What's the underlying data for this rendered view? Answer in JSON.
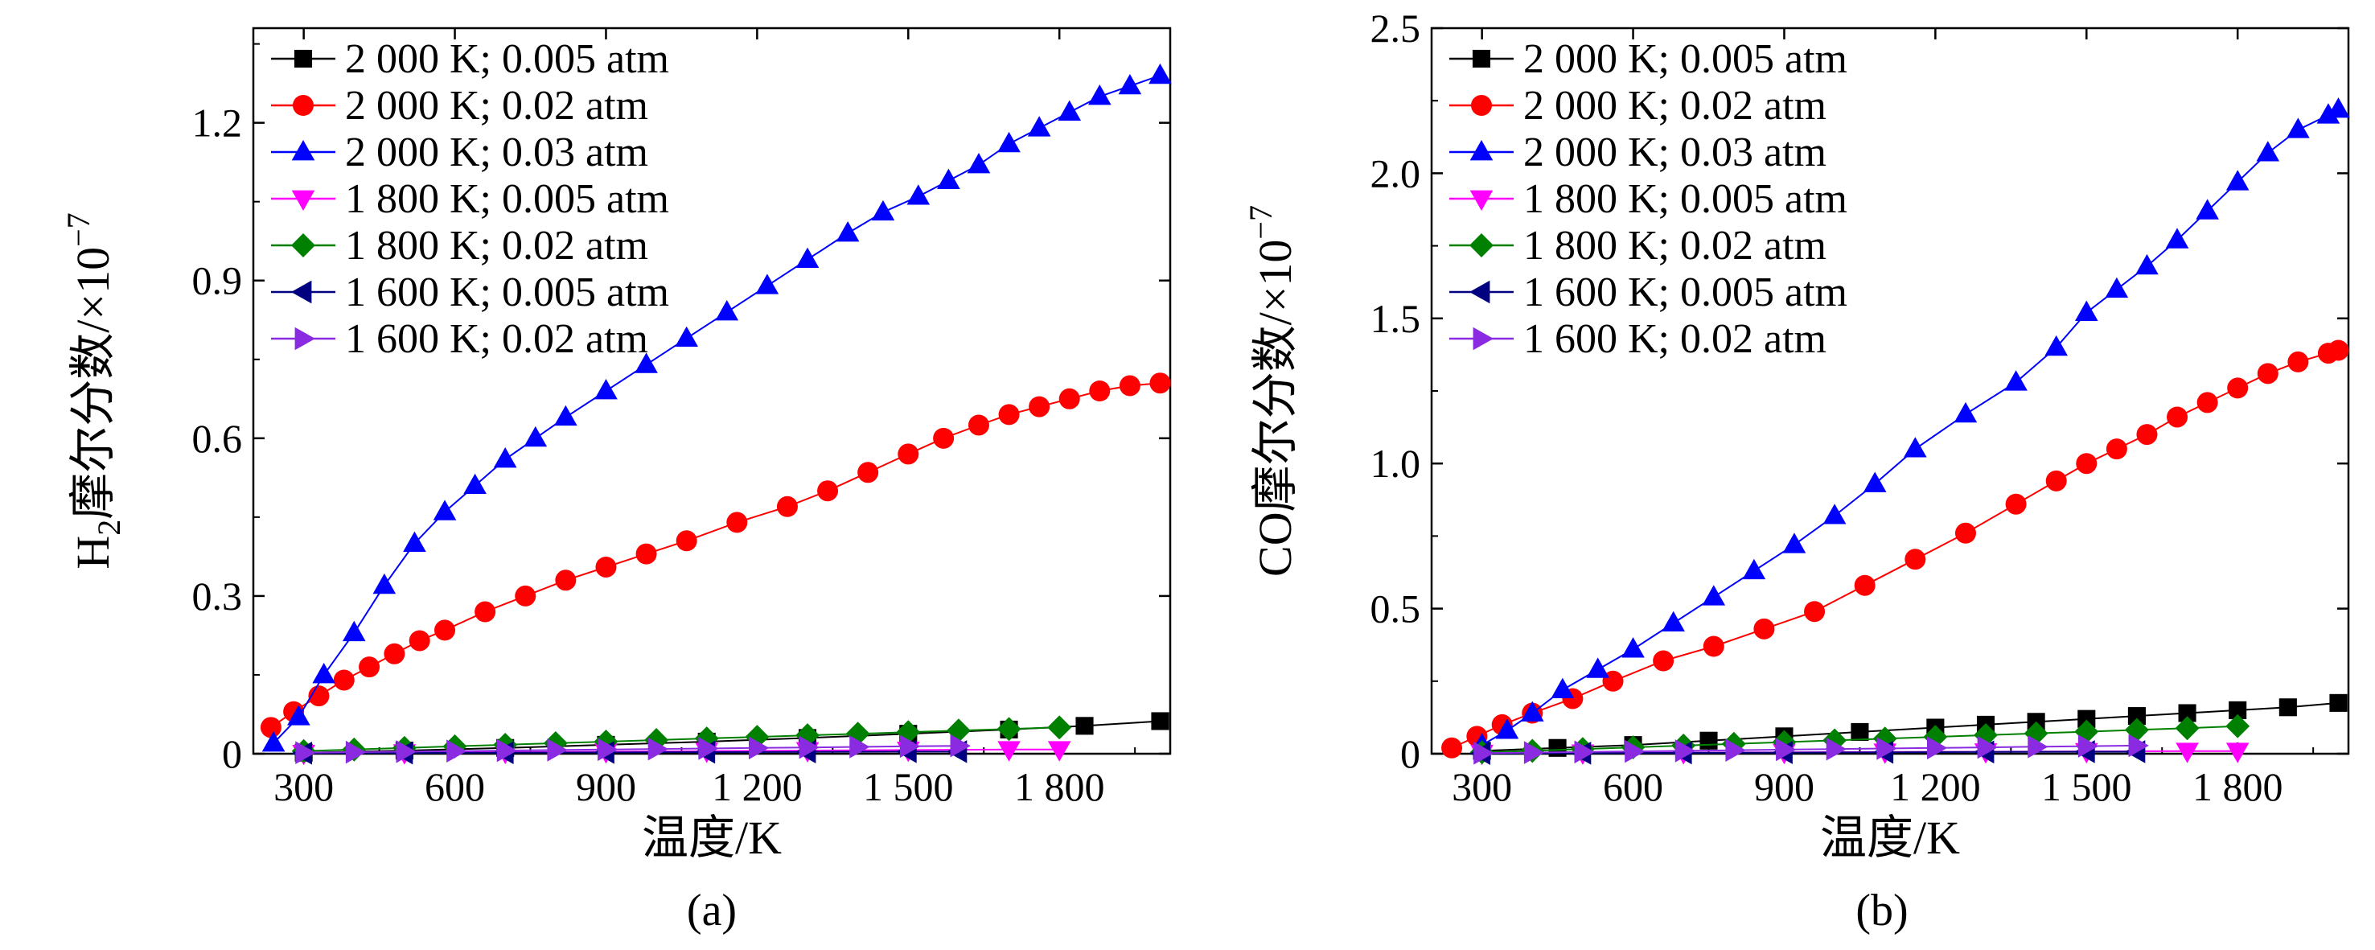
{
  "chart_data": [
    {
      "id": "a",
      "type": "line",
      "caption": "(a)",
      "xlabel": "温度/K",
      "ylabel": {
        "main": "H",
        "sub": "2",
        "rest": "摩尔分数/×10",
        "sup": "−7"
      },
      "xlim": [
        200,
        2020
      ],
      "ylim": [
        0,
        1.38
      ],
      "xticks": [
        300,
        600,
        900,
        1200,
        1500,
        1800
      ],
      "xtick_labels": [
        "300",
        "600",
        "900",
        "1 200",
        "1 500",
        "1 800"
      ],
      "yticks": [
        0,
        0.3,
        0.6,
        0.9,
        1.2
      ],
      "ytick_labels": [
        "0",
        "0.3",
        "0.6",
        "0.9",
        "1.2"
      ],
      "legend_position": "top-left",
      "grid": false,
      "series": [
        {
          "name": "2 000 K; 0.005 atm",
          "color": "#000000",
          "marker": "square",
          "x": [
            300,
            500,
            700,
            900,
            1100,
            1300,
            1500,
            1700,
            1850,
            2000
          ],
          "y": [
            0.002,
            0.006,
            0.011,
            0.017,
            0.023,
            0.03,
            0.038,
            0.046,
            0.053,
            0.062
          ]
        },
        {
          "name": "2 000 K; 0.02 atm",
          "color": "#ff0000",
          "marker": "circle",
          "x": [
            235,
            280,
            330,
            380,
            430,
            480,
            530,
            580,
            660,
            740,
            820,
            900,
            980,
            1060,
            1160,
            1260,
            1340,
            1420,
            1500,
            1570,
            1640,
            1700,
            1760,
            1820,
            1880,
            1940,
            2000
          ],
          "y": [
            0.05,
            0.08,
            0.11,
            0.14,
            0.165,
            0.19,
            0.215,
            0.235,
            0.27,
            0.3,
            0.33,
            0.355,
            0.38,
            0.405,
            0.44,
            0.47,
            0.5,
            0.535,
            0.57,
            0.6,
            0.625,
            0.645,
            0.66,
            0.675,
            0.69,
            0.7,
            0.705
          ]
        },
        {
          "name": "2 000 K; 0.03 atm",
          "color": "#0000ff",
          "marker": "triangle-up",
          "x": [
            240,
            290,
            340,
            400,
            460,
            520,
            580,
            640,
            700,
            760,
            820,
            900,
            980,
            1060,
            1140,
            1220,
            1300,
            1380,
            1450,
            1520,
            1580,
            1640,
            1700,
            1760,
            1820,
            1880,
            1940,
            2000
          ],
          "y": [
            0.02,
            0.07,
            0.15,
            0.23,
            0.32,
            0.4,
            0.46,
            0.51,
            0.56,
            0.6,
            0.64,
            0.69,
            0.74,
            0.79,
            0.84,
            0.89,
            0.94,
            0.99,
            1.03,
            1.06,
            1.09,
            1.12,
            1.16,
            1.19,
            1.22,
            1.25,
            1.27,
            1.29
          ]
        },
        {
          "name": "1 800 K; 0.005 atm",
          "color": "#ff00ff",
          "marker": "triangle-down",
          "x": [
            300,
            500,
            700,
            900,
            1100,
            1300,
            1500,
            1700,
            1800
          ],
          "y": [
            0.001,
            0.002,
            0.003,
            0.004,
            0.005,
            0.006,
            0.007,
            0.008,
            0.008
          ]
        },
        {
          "name": "1 800 K; 0.02 atm",
          "color": "#008000",
          "marker": "diamond",
          "x": [
            300,
            400,
            500,
            600,
            700,
            800,
            900,
            1000,
            1100,
            1200,
            1300,
            1400,
            1500,
            1600,
            1700,
            1800
          ],
          "y": [
            0.005,
            0.008,
            0.011,
            0.014,
            0.017,
            0.02,
            0.023,
            0.026,
            0.029,
            0.032,
            0.035,
            0.038,
            0.041,
            0.044,
            0.047,
            0.05
          ]
        },
        {
          "name": "1 600 K; 0.005 atm",
          "color": "#000080",
          "marker": "triangle-left",
          "x": [
            300,
            500,
            700,
            900,
            1100,
            1300,
            1500,
            1600
          ],
          "y": [
            0.001,
            0.0015,
            0.002,
            0.0025,
            0.003,
            0.0035,
            0.004,
            0.004
          ]
        },
        {
          "name": "1 600 K; 0.02 atm",
          "color": "#8a2be2",
          "marker": "triangle-right",
          "x": [
            300,
            400,
            500,
            600,
            700,
            800,
            900,
            1000,
            1100,
            1200,
            1300,
            1400,
            1500,
            1600
          ],
          "y": [
            0.002,
            0.003,
            0.004,
            0.005,
            0.006,
            0.007,
            0.008,
            0.009,
            0.01,
            0.011,
            0.012,
            0.013,
            0.014,
            0.015
          ]
        }
      ]
    },
    {
      "id": "b",
      "type": "line",
      "caption": "(b)",
      "xlabel": "温度/K",
      "ylabel": {
        "main": "CO",
        "sub": "",
        "rest": "摩尔分数/×10",
        "sup": "−7"
      },
      "xlim": [
        200,
        2020
      ],
      "ylim": [
        0,
        2.5
      ],
      "xticks": [
        300,
        600,
        900,
        1200,
        1500,
        1800
      ],
      "xtick_labels": [
        "300",
        "600",
        "900",
        "1 200",
        "1 500",
        "1 800"
      ],
      "yticks": [
        0,
        0.5,
        1.0,
        1.5,
        2.0,
        2.5
      ],
      "ytick_labels": [
        "0",
        "0.5",
        "1.0",
        "1.5",
        "2.0",
        "2.5"
      ],
      "legend_position": "top-left",
      "grid": false,
      "series": [
        {
          "name": "2 000 K; 0.005 atm",
          "color": "#000000",
          "marker": "square",
          "x": [
            300,
            450,
            600,
            750,
            900,
            1050,
            1200,
            1300,
            1400,
            1500,
            1600,
            1700,
            1800,
            1900,
            2000
          ],
          "y": [
            0.01,
            0.02,
            0.03,
            0.045,
            0.06,
            0.075,
            0.09,
            0.1,
            0.11,
            0.12,
            0.13,
            0.14,
            0.15,
            0.16,
            0.175
          ]
        },
        {
          "name": "2 000 K; 0.02 atm",
          "color": "#ff0000",
          "marker": "circle",
          "x": [
            240,
            290,
            340,
            400,
            480,
            560,
            660,
            760,
            860,
            960,
            1060,
            1160,
            1260,
            1360,
            1440,
            1500,
            1560,
            1620,
            1680,
            1740,
            1800,
            1860,
            1920,
            1980,
            2000
          ],
          "y": [
            0.02,
            0.06,
            0.1,
            0.14,
            0.19,
            0.25,
            0.32,
            0.37,
            0.43,
            0.49,
            0.58,
            0.67,
            0.76,
            0.86,
            0.94,
            1.0,
            1.05,
            1.1,
            1.16,
            1.21,
            1.26,
            1.31,
            1.35,
            1.38,
            1.39
          ]
        },
        {
          "name": "2 000 K; 0.03 atm",
          "color": "#0000ff",
          "marker": "triangle-up",
          "x": [
            300,
            350,
            400,
            460,
            530,
            600,
            680,
            760,
            840,
            920,
            1000,
            1080,
            1160,
            1260,
            1360,
            1440,
            1500,
            1560,
            1620,
            1680,
            1740,
            1800,
            1860,
            1920,
            1980,
            2000
          ],
          "y": [
            0.03,
            0.08,
            0.14,
            0.22,
            0.29,
            0.36,
            0.45,
            0.54,
            0.63,
            0.72,
            0.82,
            0.93,
            1.05,
            1.17,
            1.28,
            1.4,
            1.52,
            1.6,
            1.68,
            1.77,
            1.87,
            1.97,
            2.07,
            2.15,
            2.2,
            2.22
          ]
        },
        {
          "name": "1 800 K; 0.005 atm",
          "color": "#ff00ff",
          "marker": "triangle-down",
          "x": [
            300,
            500,
            700,
            900,
            1100,
            1300,
            1500,
            1700,
            1800
          ],
          "y": [
            0.002,
            0.003,
            0.004,
            0.005,
            0.006,
            0.007,
            0.008,
            0.009,
            0.009
          ]
        },
        {
          "name": "1 800 K; 0.02 atm",
          "color": "#008000",
          "marker": "diamond",
          "x": [
            300,
            400,
            500,
            600,
            700,
            800,
            900,
            1000,
            1100,
            1200,
            1300,
            1400,
            1500,
            1600,
            1700,
            1800
          ],
          "y": [
            0.005,
            0.01,
            0.016,
            0.022,
            0.028,
            0.034,
            0.04,
            0.046,
            0.052,
            0.058,
            0.064,
            0.07,
            0.076,
            0.082,
            0.088,
            0.095
          ]
        },
        {
          "name": "1 600 K; 0.005 atm",
          "color": "#000080",
          "marker": "triangle-left",
          "x": [
            300,
            500,
            700,
            900,
            1100,
            1300,
            1500,
            1600
          ],
          "y": [
            0.001,
            0.002,
            0.003,
            0.004,
            0.005,
            0.006,
            0.007,
            0.007
          ]
        },
        {
          "name": "1 600 K; 0.02 atm",
          "color": "#8a2be2",
          "marker": "triangle-right",
          "x": [
            300,
            400,
            500,
            600,
            700,
            800,
            900,
            1000,
            1100,
            1200,
            1300,
            1400,
            1500,
            1600
          ],
          "y": [
            0.002,
            0.004,
            0.006,
            0.008,
            0.01,
            0.012,
            0.014,
            0.016,
            0.018,
            0.02,
            0.022,
            0.024,
            0.026,
            0.028
          ]
        }
      ]
    }
  ]
}
